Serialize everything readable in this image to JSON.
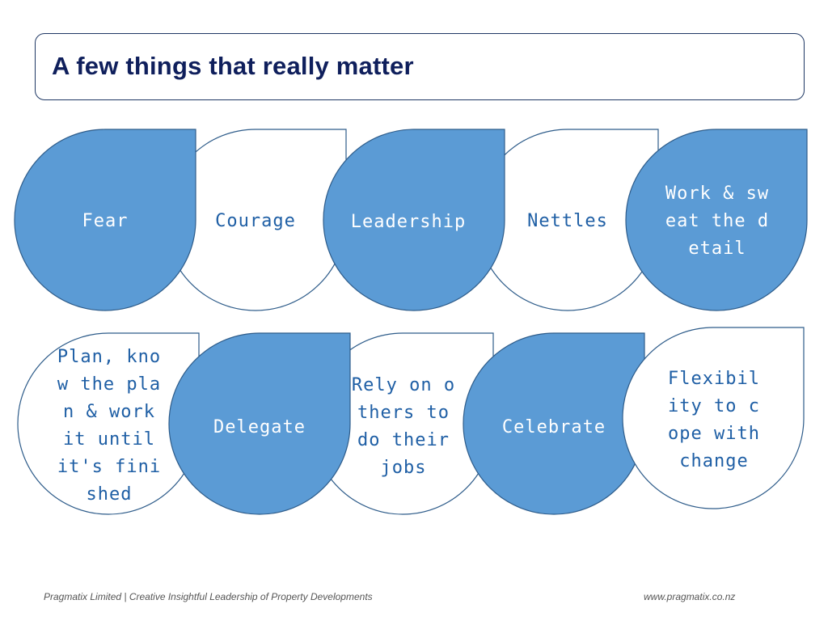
{
  "slide": {
    "title": "A few things that really matter"
  },
  "shapes": {
    "row1": [
      "Fear",
      "Courage",
      "Leadership",
      "Nettles",
      "Work & sweat the detail"
    ],
    "row2": [
      "Plan, know the plan & work it until it's finished",
      "Delegate",
      "Rely on others to do their jobs",
      "Celebrate",
      "Flexibility to cope with change"
    ]
  },
  "footer": {
    "company": "Pragmatix Limited | Creative Insightful Leadership of Property Developments",
    "website": "www.pragmatix.co.nz"
  },
  "colors": {
    "filled": "#5b9bd5",
    "outline": "#2e5c8a",
    "title": "#0f1f5c"
  }
}
